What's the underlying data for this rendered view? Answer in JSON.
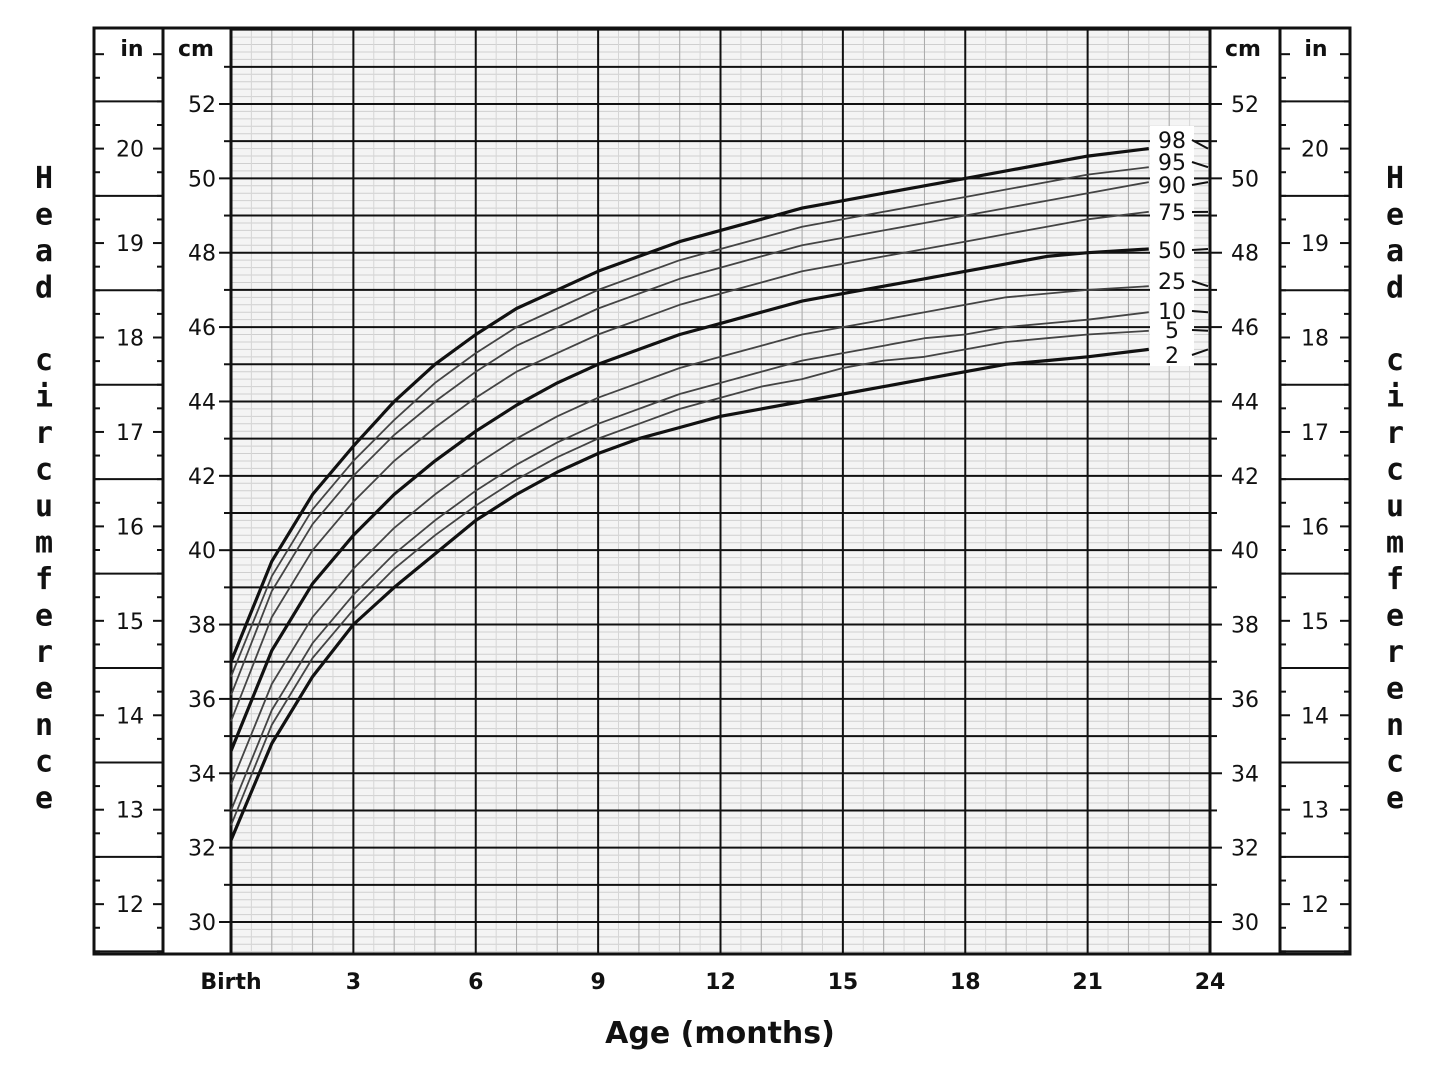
{
  "chart_data": {
    "type": "line",
    "xlabel": "Age (months)",
    "ylabel": "Head circumference",
    "x_ticks": [
      {
        "value": 0,
        "label": "Birth"
      },
      {
        "value": 3,
        "label": "3"
      },
      {
        "value": 6,
        "label": "6"
      },
      {
        "value": 9,
        "label": "9"
      },
      {
        "value": 12,
        "label": "12"
      },
      {
        "value": 15,
        "label": "15"
      },
      {
        "value": 18,
        "label": "18"
      },
      {
        "value": 21,
        "label": "21"
      },
      {
        "value": 24,
        "label": "24"
      }
    ],
    "xlim": [
      0,
      24
    ],
    "ylim_cm": [
      29,
      54
    ],
    "cm_unit": "cm",
    "in_unit": "in",
    "cm_ticks": [
      30,
      32,
      34,
      36,
      38,
      40,
      42,
      44,
      46,
      48,
      50,
      52
    ],
    "in_ticks": [
      12,
      13,
      14,
      15,
      16,
      17,
      18,
      19,
      20
    ],
    "grid": true,
    "x": [
      0,
      1,
      2,
      3,
      4,
      5,
      6,
      7,
      8,
      9,
      10,
      11,
      12,
      13,
      14,
      15,
      16,
      17,
      18,
      19,
      20,
      21,
      22.5
    ],
    "series": [
      {
        "name": "98",
        "values": [
          37.0,
          39.7,
          41.5,
          42.8,
          44.0,
          45.0,
          45.8,
          46.5,
          47.0,
          47.5,
          47.9,
          48.3,
          48.6,
          48.9,
          49.2,
          49.4,
          49.6,
          49.8,
          50.0,
          50.2,
          50.4,
          50.6,
          50.8
        ]
      },
      {
        "name": "95",
        "values": [
          36.6,
          39.3,
          41.1,
          42.4,
          43.5,
          44.5,
          45.3,
          46.0,
          46.5,
          47.0,
          47.4,
          47.8,
          48.1,
          48.4,
          48.7,
          48.9,
          49.1,
          49.3,
          49.5,
          49.7,
          49.9,
          50.1,
          50.3
        ]
      },
      {
        "name": "90",
        "values": [
          36.1,
          38.9,
          40.7,
          42.0,
          43.1,
          44.0,
          44.8,
          45.5,
          46.0,
          46.5,
          46.9,
          47.3,
          47.6,
          47.9,
          48.2,
          48.4,
          48.6,
          48.8,
          49.0,
          49.2,
          49.4,
          49.6,
          49.9
        ]
      },
      {
        "name": "75",
        "values": [
          35.4,
          38.2,
          40.0,
          41.3,
          42.4,
          43.3,
          44.1,
          44.8,
          45.3,
          45.8,
          46.2,
          46.6,
          46.9,
          47.2,
          47.5,
          47.7,
          47.9,
          48.1,
          48.3,
          48.5,
          48.7,
          48.9,
          49.1
        ]
      },
      {
        "name": "50",
        "values": [
          34.6,
          37.3,
          39.1,
          40.4,
          41.5,
          42.4,
          43.2,
          43.9,
          44.5,
          45.0,
          45.4,
          45.8,
          46.1,
          46.4,
          46.7,
          46.9,
          47.1,
          47.3,
          47.5,
          47.7,
          47.9,
          48.0,
          48.1
        ]
      },
      {
        "name": "25",
        "values": [
          33.7,
          36.4,
          38.2,
          39.5,
          40.6,
          41.5,
          42.3,
          43.0,
          43.6,
          44.1,
          44.5,
          44.9,
          45.2,
          45.5,
          45.8,
          46.0,
          46.2,
          46.4,
          46.6,
          46.8,
          46.9,
          47.0,
          47.1
        ]
      },
      {
        "name": "10",
        "values": [
          33.0,
          35.7,
          37.5,
          38.8,
          39.9,
          40.8,
          41.6,
          42.3,
          42.9,
          43.4,
          43.8,
          44.2,
          44.5,
          44.8,
          45.1,
          45.3,
          45.5,
          45.7,
          45.8,
          46.0,
          46.1,
          46.2,
          46.4
        ]
      },
      {
        "name": "5",
        "values": [
          32.6,
          35.3,
          37.1,
          38.4,
          39.5,
          40.4,
          41.2,
          41.9,
          42.5,
          43.0,
          43.4,
          43.8,
          44.1,
          44.4,
          44.6,
          44.9,
          45.1,
          45.2,
          45.4,
          45.6,
          45.7,
          45.8,
          45.9
        ]
      },
      {
        "name": "2",
        "values": [
          32.2,
          34.8,
          36.6,
          38.0,
          39.0,
          39.9,
          40.8,
          41.5,
          42.1,
          42.6,
          43.0,
          43.3,
          43.6,
          43.8,
          44.0,
          44.2,
          44.4,
          44.6,
          44.8,
          45.0,
          45.1,
          45.2,
          45.4
        ]
      }
    ],
    "bold_series": [
      "98",
      "50",
      "2"
    ]
  }
}
